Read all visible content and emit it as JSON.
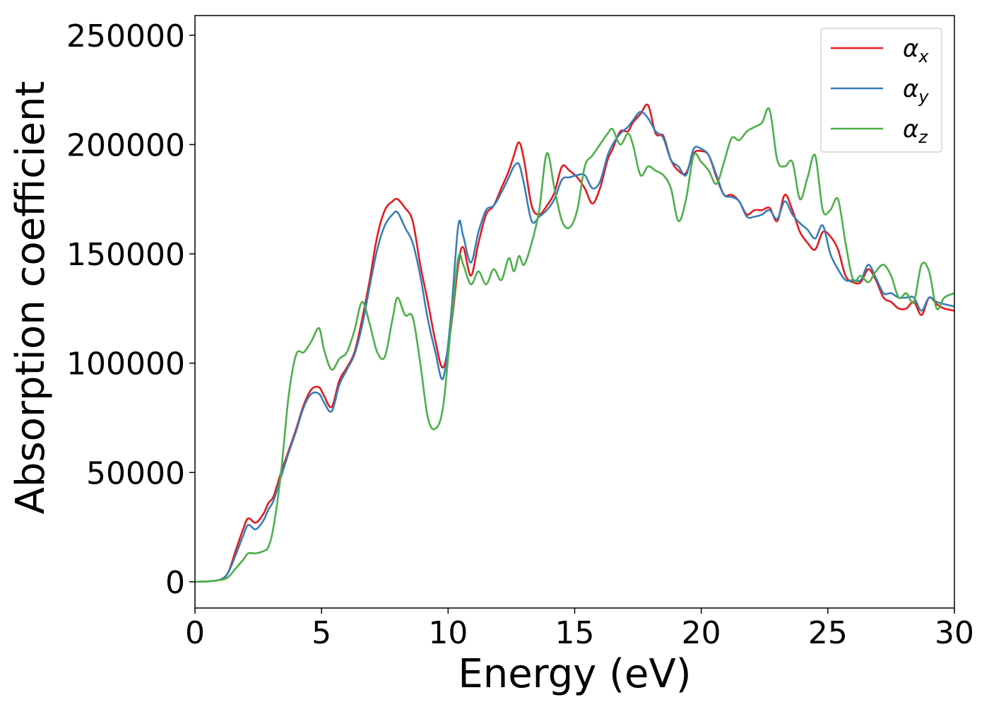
{
  "chart_data": {
    "type": "line",
    "title": "",
    "xlabel": "Energy (eV)",
    "ylabel": "Absorption coefficient",
    "xlim": [
      0,
      30
    ],
    "ylim": [
      -12000,
      259000
    ],
    "xticks": [
      0,
      5,
      10,
      15,
      20,
      25,
      30
    ],
    "yticks": [
      0,
      50000,
      100000,
      150000,
      200000,
      250000
    ],
    "grid": false,
    "legend_position": "top-right",
    "x": [
      0,
      0.5,
      1,
      1.3,
      1.6,
      1.9,
      2.1,
      2.4,
      2.7,
      2.9,
      3.1,
      3.4,
      3.7,
      4,
      4.3,
      4.6,
      4.9,
      5.1,
      5.4,
      5.7,
      6,
      6.3,
      6.6,
      6.9,
      7.2,
      7.5,
      7.8,
      8,
      8.3,
      8.6,
      8.9,
      9.2,
      9.5,
      9.8,
      10.1,
      10.4,
      10.6,
      10.9,
      11.2,
      11.5,
      11.8,
      12.1,
      12.4,
      12.6,
      12.8,
      13,
      13.3,
      13.6,
      13.9,
      14.2,
      14.5,
      14.8,
      15.1,
      15.4,
      15.7,
      16,
      16.3,
      16.5,
      16.8,
      17.1,
      17.3,
      17.6,
      17.9,
      18.2,
      18.5,
      18.8,
      19.1,
      19.4,
      19.7,
      20,
      20.3,
      20.6,
      20.9,
      21.2,
      21.5,
      21.8,
      22.1,
      22.4,
      22.7,
      23,
      23.3,
      23.6,
      23.9,
      24.2,
      24.5,
      24.8,
      25.1,
      25.4,
      25.7,
      26,
      26.3,
      26.6,
      26.9,
      27.2,
      27.5,
      27.8,
      28.1,
      28.4,
      28.7,
      29,
      29.3,
      29.6,
      30
    ],
    "series": [
      {
        "name": "α",
        "subscript": "x",
        "color": "#e41a1c",
        "values": [
          0,
          200,
          1000,
          4000,
          14000,
          24000,
          29000,
          27000,
          31000,
          36000,
          39000,
          50000,
          60000,
          70000,
          81000,
          88000,
          89000,
          85000,
          80000,
          92000,
          98000,
          105000,
          120000,
          138000,
          158000,
          170000,
          174000,
          175000,
          171000,
          165000,
          145000,
          128000,
          110000,
          98000,
          115000,
          145000,
          153000,
          140000,
          155000,
          168000,
          172000,
          180000,
          188000,
          195000,
          201000,
          193000,
          172000,
          168000,
          172000,
          178000,
          190000,
          188000,
          185000,
          180000,
          173000,
          180000,
          193000,
          198000,
          206000,
          206000,
          210000,
          214000,
          218000,
          205000,
          204000,
          193000,
          188000,
          187000,
          196000,
          197000,
          195000,
          185000,
          177000,
          177000,
          174000,
          168000,
          170000,
          170000,
          171000,
          165000,
          177000,
          170000,
          160000,
          155000,
          152000,
          160000,
          158000,
          152000,
          140000,
          137000,
          137000,
          143000,
          138000,
          130000,
          128000,
          125000,
          125000,
          128000,
          122000,
          130000,
          127000,
          125000,
          124000
        ]
      },
      {
        "name": "α",
        "subscript": "y",
        "color": "#377eb8",
        "values": [
          0,
          200,
          1000,
          4000,
          12000,
          21000,
          26000,
          24000,
          28000,
          33000,
          37000,
          48000,
          59000,
          69000,
          80000,
          86000,
          86000,
          82000,
          78000,
          90000,
          97000,
          104000,
          117000,
          135000,
          152000,
          163000,
          168000,
          169000,
          162000,
          155000,
          140000,
          120000,
          105000,
          93000,
          120000,
          163000,
          158000,
          146000,
          160000,
          170000,
          172000,
          178000,
          185000,
          190000,
          191000,
          182000,
          165000,
          167000,
          170000,
          175000,
          184000,
          185000,
          186000,
          186000,
          180000,
          183000,
          195000,
          200000,
          205000,
          208000,
          211000,
          215000,
          212000,
          206000,
          203000,
          193000,
          190000,
          186000,
          198000,
          198000,
          195000,
          186000,
          177000,
          176000,
          174000,
          167000,
          167000,
          168000,
          170000,
          166000,
          174000,
          168000,
          164000,
          161000,
          157000,
          163000,
          150000,
          143000,
          138000,
          138000,
          138000,
          145000,
          139000,
          132000,
          132000,
          130000,
          130000,
          130000,
          124000,
          130000,
          128000,
          127000,
          126000
        ]
      },
      {
        "name": "α",
        "subscript": "z",
        "color": "#4daf4a",
        "values": [
          0,
          200,
          800,
          2000,
          6000,
          10000,
          13000,
          13000,
          14000,
          16000,
          25000,
          50000,
          85000,
          104000,
          105000,
          110000,
          116000,
          106000,
          97000,
          102000,
          105000,
          115000,
          128000,
          118000,
          105000,
          103000,
          120000,
          130000,
          122000,
          121000,
          100000,
          75000,
          70000,
          80000,
          115000,
          148000,
          145000,
          136000,
          142000,
          136000,
          143000,
          138000,
          148000,
          142000,
          149000,
          145000,
          155000,
          170000,
          196000,
          180000,
          165000,
          162000,
          170000,
          190000,
          195000,
          200000,
          205000,
          207000,
          200000,
          205000,
          200000,
          186000,
          190000,
          188000,
          186000,
          180000,
          165000,
          175000,
          195000,
          192000,
          188000,
          182000,
          192000,
          203000,
          202000,
          206000,
          208000,
          210000,
          216000,
          193000,
          190000,
          192000,
          175000,
          185000,
          195000,
          170000,
          170000,
          175000,
          155000,
          138000,
          140000,
          137000,
          142000,
          145000,
          140000,
          130000,
          132000,
          128000,
          145000,
          142000,
          125000,
          130000,
          132000
        ]
      }
    ]
  }
}
